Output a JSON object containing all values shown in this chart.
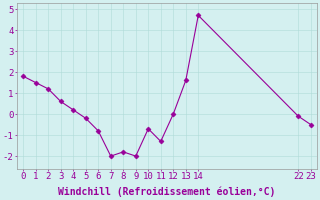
{
  "x": [
    0,
    1,
    2,
    3,
    4,
    5,
    6,
    7,
    8,
    9,
    10,
    11,
    12,
    13,
    14,
    22,
    23
  ],
  "y": [
    1.8,
    1.5,
    1.2,
    0.6,
    0.2,
    -0.2,
    -0.8,
    -2.0,
    -1.8,
    -2.0,
    -0.7,
    -1.3,
    0.0,
    1.6,
    4.7,
    -0.1,
    -0.5
  ],
  "line_color": "#990099",
  "marker_color": "#990099",
  "bg_color": "#d4f0f0",
  "grid_color": "#b0dbd8",
  "xlabel": "Windchill (Refroidissement éolien,°C)",
  "ylim": [
    -2.6,
    5.3
  ],
  "xlim": [
    -0.5,
    23.5
  ],
  "xticks": [
    0,
    1,
    2,
    3,
    4,
    5,
    6,
    7,
    8,
    9,
    10,
    11,
    12,
    13,
    14,
    22,
    23
  ],
  "yticks": [
    -2,
    -1,
    0,
    1,
    2,
    3,
    4,
    5
  ],
  "xlabel_fontsize": 7,
  "tick_fontsize": 6.5,
  "label_color": "#990099",
  "spine_color": "#999999"
}
